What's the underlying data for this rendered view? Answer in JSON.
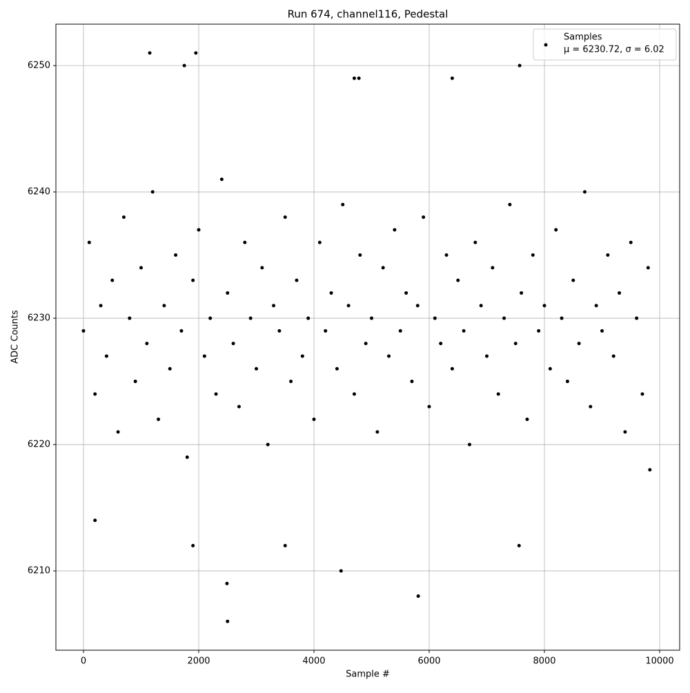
{
  "chart_data": {
    "type": "scatter",
    "title": "Run 674, channel116, Pedestal",
    "xlabel": "Sample #",
    "ylabel": "ADC Counts",
    "xlim": [
      -479,
      10347
    ],
    "xticks": [
      0,
      2000,
      4000,
      6000,
      8000,
      10000
    ],
    "ylim": [
      6203.72,
      6253.28
    ],
    "yticks": [
      6210,
      6220,
      6230,
      6240,
      6250
    ],
    "grid": true,
    "legend_position": "upper right",
    "series": [
      {
        "name": "Samples",
        "stats_label": "μ = 6230.72, σ = 6.02",
        "color": "#000000",
        "x": [
          0,
          100,
          200,
          300,
          400,
          500,
          600,
          700,
          800,
          900,
          1000,
          1100,
          1200,
          1300,
          1400,
          1500,
          1600,
          1700,
          1800,
          1900,
          2000,
          2100,
          2200,
          2300,
          2400,
          2500,
          2600,
          2700,
          2800,
          2900,
          3000,
          3100,
          3200,
          3300,
          3400,
          3500,
          3600,
          3700,
          3800,
          3900,
          4000,
          4100,
          4200,
          4300,
          4400,
          4500,
          4600,
          4700,
          4800,
          4900,
          5000,
          5100,
          5200,
          5300,
          5400,
          5500,
          5600,
          5700,
          5800,
          5900,
          6000,
          6100,
          6200,
          6300,
          6400,
          6500,
          6600,
          6700,
          6800,
          6900,
          7000,
          7100,
          7200,
          7300,
          7400,
          7500,
          7600,
          7700,
          7800,
          7900,
          8000,
          8100,
          8200,
          8300,
          8400,
          8500,
          8600,
          8700,
          8800,
          8900,
          9000,
          9100,
          9200,
          9300,
          9400,
          9500,
          9600,
          9700,
          9800,
          1150,
          1950,
          1750,
          7570,
          2500,
          2490,
          4470,
          5810,
          1900,
          3500,
          7560,
          4700,
          4780,
          6400,
          200,
          9830
        ],
        "values": [
          6229,
          6236,
          6224,
          6231,
          6227,
          6233,
          6221,
          6238,
          6230,
          6225,
          6234,
          6228,
          6240,
          6222,
          6231,
          6226,
          6235,
          6229,
          6219,
          6233,
          6237,
          6227,
          6230,
          6224,
          6241,
          6232,
          6228,
          6223,
          6236,
          6230,
          6226,
          6234,
          6220,
          6231,
          6229,
          6238,
          6225,
          6233,
          6227,
          6230,
          6222,
          6236,
          6229,
          6232,
          6226,
          6239,
          6231,
          6224,
          6235,
          6228,
          6230,
          6221,
          6234,
          6227,
          6237,
          6229,
          6232,
          6225,
          6231,
          6238,
          6223,
          6230,
          6228,
          6235,
          6226,
          6233,
          6229,
          6220,
          6236,
          6231,
          6227,
          6234,
          6224,
          6230,
          6239,
          6228,
          6232,
          6222,
          6235,
          6229,
          6231,
          6226,
          6237,
          6230,
          6225,
          6233,
          6228,
          6240,
          6223,
          6231,
          6229,
          6235,
          6227,
          6232,
          6221,
          6236,
          6230,
          6224,
          6234,
          6251,
          6251,
          6250,
          6250,
          6206,
          6209,
          6210,
          6208,
          6212,
          6212,
          6212,
          6249,
          6249,
          6249,
          6214,
          6218
        ]
      }
    ]
  }
}
